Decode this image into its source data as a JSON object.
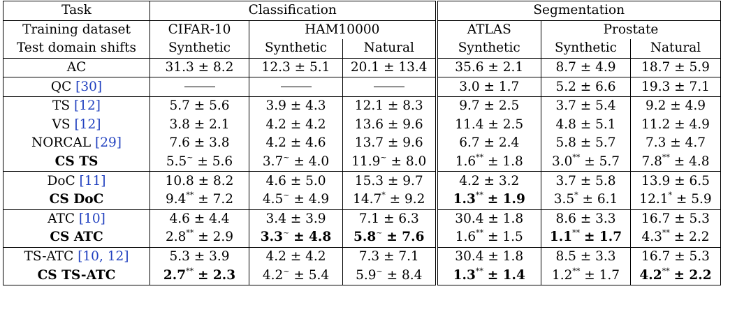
{
  "header": {
    "row1": {
      "label": "Task",
      "classification": "Classification",
      "segmentation": "Segmentation"
    },
    "row2": {
      "label": "Training dataset",
      "cifar": "CIFAR-10",
      "ham": "HAM10000",
      "atlas": "ATLAS",
      "prostate": "Prostate"
    },
    "row3": {
      "label": "Test domain shifts",
      "c1": "Synthetic",
      "c2": "Synthetic",
      "c3": "Natural",
      "c4": "Synthetic",
      "c5": "Synthetic",
      "c6": "Natural"
    }
  },
  "rows": [
    {
      "method": "AC",
      "cite": "",
      "cells": [
        {
          "v": "31.3",
          "s": "",
          "pm": "± 8.2"
        },
        {
          "v": "12.3",
          "s": "",
          "pm": "± 5.1"
        },
        {
          "v": "20.1",
          "s": "",
          "pm": "± 13.4"
        },
        {
          "v": "35.6",
          "s": "",
          "pm": "± 2.1"
        },
        {
          "v": "8.7",
          "s": "",
          "pm": "± 4.9"
        },
        {
          "v": "18.7",
          "s": "",
          "pm": "± 5.9"
        }
      ]
    },
    {
      "method": "QC ",
      "cite": "[30]",
      "cells": [
        {
          "dash": "true"
        },
        {
          "dash": "true"
        },
        {
          "dash": "true"
        },
        {
          "v": "3.0",
          "s": "",
          "pm": "± 1.7"
        },
        {
          "v": "5.2",
          "s": "",
          "pm": "± 6.6"
        },
        {
          "v": "19.3",
          "s": "",
          "pm": "± 7.1"
        }
      ]
    },
    {
      "method": "TS ",
      "cite": "[12]",
      "cells": [
        {
          "v": "5.7",
          "s": "",
          "pm": "± 5.6"
        },
        {
          "v": "3.9",
          "s": "",
          "pm": "± 4.3"
        },
        {
          "v": "12.1",
          "s": "",
          "pm": "± 8.3"
        },
        {
          "v": "9.7",
          "s": "",
          "pm": "± 2.5"
        },
        {
          "v": "3.7",
          "s": "",
          "pm": "± 5.4"
        },
        {
          "v": "9.2",
          "s": "",
          "pm": "± 4.9"
        }
      ]
    },
    {
      "method": "VS ",
      "cite": "[12]",
      "cells": [
        {
          "v": "3.8",
          "s": "",
          "pm": "± 2.1"
        },
        {
          "v": "4.2",
          "s": "",
          "pm": "± 4.2"
        },
        {
          "v": "13.6",
          "s": "",
          "pm": "± 9.6"
        },
        {
          "v": "11.4",
          "s": "",
          "pm": "± 2.5"
        },
        {
          "v": "4.8",
          "s": "",
          "pm": "± 5.1"
        },
        {
          "v": "11.2",
          "s": "",
          "pm": "± 4.9"
        }
      ]
    },
    {
      "method": "NORCAL ",
      "cite": "[29]",
      "cells": [
        {
          "v": "7.6",
          "s": "",
          "pm": "± 3.8"
        },
        {
          "v": "4.2",
          "s": "",
          "pm": "± 4.6"
        },
        {
          "v": "13.7",
          "s": "",
          "pm": "± 9.6"
        },
        {
          "v": "6.7",
          "s": "",
          "pm": "± 2.4"
        },
        {
          "v": "5.8",
          "s": "",
          "pm": "± 5.7"
        },
        {
          "v": "7.3",
          "s": "",
          "pm": "± 4.7"
        }
      ]
    },
    {
      "method": "CS TS",
      "bold": true,
      "cite": "",
      "cells": [
        {
          "v": "5.5",
          "s": "~",
          "pm": "± 5.6"
        },
        {
          "v": "3.7",
          "s": "~",
          "pm": "± 4.0"
        },
        {
          "v": "11.9",
          "s": "~",
          "pm": "± 8.0"
        },
        {
          "v": "1.6",
          "s": "**",
          "pm": "± 1.8"
        },
        {
          "v": "3.0",
          "s": "**",
          "pm": "± 5.7"
        },
        {
          "v": "7.8",
          "s": "**",
          "pm": "± 4.8"
        }
      ]
    },
    {
      "method": "DoC ",
      "cite": "[11]",
      "cells": [
        {
          "v": "10.8",
          "s": "",
          "pm": "± 8.2"
        },
        {
          "v": "4.6",
          "s": "",
          "pm": "± 5.0"
        },
        {
          "v": "15.3",
          "s": "",
          "pm": "± 9.7"
        },
        {
          "v": "4.2",
          "s": "",
          "pm": "± 3.2"
        },
        {
          "v": "3.7",
          "s": "",
          "pm": "± 5.8"
        },
        {
          "v": "13.9",
          "s": "",
          "pm": "± 6.5"
        }
      ]
    },
    {
      "method": "CS DoC",
      "bold": true,
      "cite": "",
      "cells": [
        {
          "v": "9.4",
          "s": "**",
          "pm": "± 7.2"
        },
        {
          "v": "4.5",
          "s": "~",
          "pm": "± 4.9"
        },
        {
          "v": "14.7",
          "s": "*",
          "pm": "± 9.2"
        },
        {
          "v": "1.3",
          "s": "**",
          "pm": "± 1.9",
          "b": true
        },
        {
          "v": "3.5",
          "s": "*",
          "pm": "± 6.1"
        },
        {
          "v": "12.1",
          "s": "*",
          "pm": "± 5.9"
        }
      ]
    },
    {
      "method": "ATC ",
      "cite": "[10]",
      "cells": [
        {
          "v": "4.6",
          "s": "",
          "pm": "± 4.4"
        },
        {
          "v": "3.4",
          "s": "",
          "pm": "± 3.9"
        },
        {
          "v": "7.1",
          "s": "",
          "pm": "± 6.3"
        },
        {
          "v": "30.4",
          "s": "",
          "pm": "± 1.8"
        },
        {
          "v": "8.6",
          "s": "",
          "pm": "± 3.3"
        },
        {
          "v": "16.7",
          "s": "",
          "pm": "± 5.3"
        }
      ]
    },
    {
      "method": "CS ATC",
      "bold": true,
      "cite": "",
      "cells": [
        {
          "v": "2.8",
          "s": "**",
          "pm": "± 2.9"
        },
        {
          "v": "3.3",
          "s": "~",
          "pm": "± 4.8",
          "b": true
        },
        {
          "v": "5.8",
          "s": "~",
          "pm": "± 7.6",
          "b": true
        },
        {
          "v": "1.6",
          "s": "**",
          "pm": "± 1.5"
        },
        {
          "v": "1.1",
          "s": "**",
          "pm": "± 1.7",
          "b": true
        },
        {
          "v": "4.3",
          "s": "**",
          "pm": "± 2.2"
        }
      ]
    },
    {
      "method": "TS-ATC ",
      "cite": "[10, 12]",
      "cells": [
        {
          "v": "5.3",
          "s": "",
          "pm": "± 3.9"
        },
        {
          "v": "4.2",
          "s": "",
          "pm": "± 4.2"
        },
        {
          "v": "7.3",
          "s": "",
          "pm": "± 7.1"
        },
        {
          "v": "30.4",
          "s": "",
          "pm": "± 1.8"
        },
        {
          "v": "8.5",
          "s": "",
          "pm": "± 3.3"
        },
        {
          "v": "16.7",
          "s": "",
          "pm": "± 5.3"
        }
      ]
    },
    {
      "method": "CS TS-ATC",
      "bold": true,
      "cite": "",
      "cells": [
        {
          "v": "2.7",
          "s": "**",
          "pm": "± 2.3",
          "b": true
        },
        {
          "v": "4.2",
          "s": "~",
          "pm": "± 5.4"
        },
        {
          "v": "5.9",
          "s": "~",
          "pm": "± 8.4"
        },
        {
          "v": "1.3",
          "s": "**",
          "pm": "± 1.4",
          "b": true
        },
        {
          "v": "1.2",
          "s": "**",
          "pm": "± 1.7"
        },
        {
          "v": "4.2",
          "s": "**",
          "pm": "± 2.2",
          "b": true
        }
      ]
    }
  ]
}
